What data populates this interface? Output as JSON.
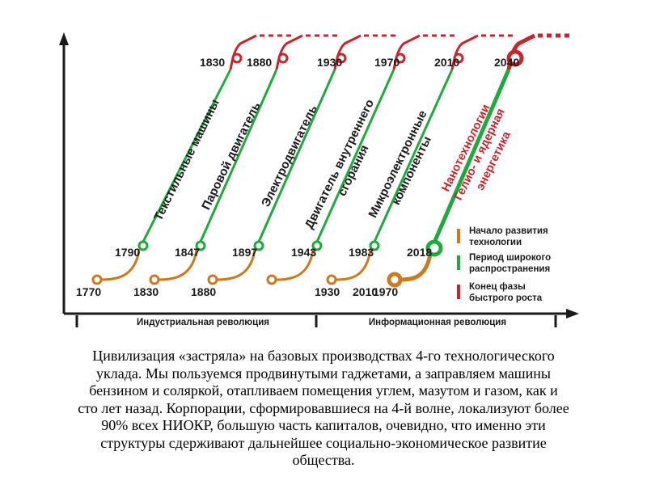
{
  "colors": {
    "start": "#cc7a1e",
    "spread": "#1faa3e",
    "end": "#c8242b",
    "text": "#1a1a1a"
  },
  "diagram": {
    "waves": [
      {
        "start_year": "1770",
        "spread_year": "1790",
        "end_year": "1830",
        "label": "Текстильные машины",
        "label2": ""
      },
      {
        "start_year": "1830",
        "spread_year": "1847",
        "end_year": "1880",
        "label": "Паровой двигатель",
        "label2": ""
      },
      {
        "start_year": "1880",
        "spread_year": "1897",
        "end_year": "1930",
        "label": "Электродвигатель",
        "label2": ""
      },
      {
        "start_year": "1930",
        "spread_year": "1943",
        "end_year": "1970",
        "label": "Двигатель внутреннего",
        "label2": "сгорания"
      },
      {
        "start_year": "1970",
        "spread_year": "1983",
        "end_year": "2010",
        "label": "Микроэлектронные",
        "label2": "компоненты"
      },
      {
        "start_year": "2010",
        "spread_year": "2018",
        "end_year": "2040",
        "label": "Нанотехнологии",
        "label2": "Гелио- и ядерная",
        "label3": "энергетика"
      }
    ],
    "legend": [
      {
        "label": "Начало развития",
        "label2": "технологии"
      },
      {
        "label": "Период широкого",
        "label2": "распространения"
      },
      {
        "label": "Конец фазы",
        "label2": "быстрого роста"
      }
    ],
    "eras": [
      "Индустриальная революция",
      "Информационная революция"
    ]
  },
  "caption": {
    "lines": [
      "Цивилизация «застряла» на базовых производствах 4-го технологического",
      "уклада. Мы пользуемся продвинутыми гаджетами, а заправляем машины",
      "бензином и соляркой, отапливаем помещения углем, мазутом  и газом, как и",
      "сто лет назад. Корпорации, сформировавшиеся на 4-й волне, локализуют более",
      "90% всех НИОКР, большую часть капиталов, очевидно, что именно эти",
      "структуры сдерживают дальнейшее социально-экономическое развитие",
      "общества."
    ]
  }
}
